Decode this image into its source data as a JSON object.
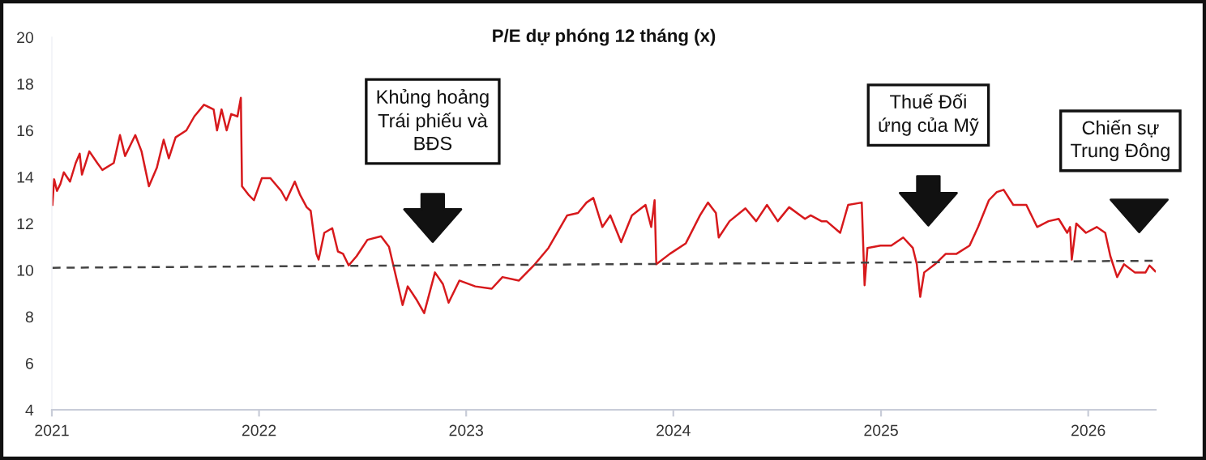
{
  "chart_data": {
    "type": "line",
    "title": "P/E dự phóng 12 tháng (x)",
    "xlim": [
      "2021-01-01",
      "2026-04-30"
    ],
    "xticks": [
      "2021",
      "2022",
      "2023",
      "2024",
      "2025",
      "2026"
    ],
    "ylim": [
      4,
      20
    ],
    "yticks": [
      4,
      6,
      8,
      10,
      12,
      14,
      16,
      18,
      20
    ],
    "grid": false,
    "series": [
      {
        "color": "#d7191c",
        "line_style": "solid",
        "x": [
          "2021-01-02",
          "2021-01-05",
          "2021-01-10",
          "2021-01-16",
          "2021-01-22",
          "2021-02-02",
          "2021-02-12",
          "2021-02-19",
          "2021-02-23",
          "2021-03-08",
          "2021-03-22",
          "2021-03-31",
          "2021-04-20",
          "2021-05-01",
          "2021-05-10",
          "2021-05-28",
          "2021-06-08",
          "2021-06-21",
          "2021-07-05",
          "2021-07-17",
          "2021-07-26",
          "2021-08-07",
          "2021-08-26",
          "2021-09-09",
          "2021-09-26",
          "2021-10-13",
          "2021-10-19",
          "2021-10-27",
          "2021-11-05",
          "2021-11-13",
          "2021-11-24",
          "2021-11-30",
          "2021-12-02",
          "2021-12-13",
          "2021-12-23",
          "2022-01-06",
          "2022-01-21",
          "2022-02-09",
          "2022-02-18",
          "2022-03-05",
          "2022-03-14",
          "2022-03-26",
          "2022-04-02",
          "2022-04-12",
          "2022-04-16",
          "2022-04-26",
          "2022-05-10",
          "2022-05-20",
          "2022-05-29",
          "2022-06-08",
          "2022-06-22",
          "2022-07-11",
          "2022-08-04",
          "2022-08-18",
          "2022-09-01",
          "2022-09-11",
          "2022-09-20",
          "2022-10-05",
          "2022-10-19",
          "2022-11-07",
          "2022-11-21",
          "2022-12-01",
          "2022-12-20",
          "2023-01-17",
          "2023-02-15",
          "2023-03-06",
          "2023-04-04",
          "2023-05-02",
          "2023-05-26",
          "2023-06-28",
          "2023-07-17",
          "2023-08-01",
          "2023-08-13",
          "2023-08-29",
          "2023-09-12",
          "2023-10-01",
          "2023-10-20",
          "2023-11-13",
          "2023-11-23",
          "2023-11-29",
          "2023-12-02",
          "2023-12-26",
          "2024-01-23",
          "2024-02-17",
          "2024-03-02",
          "2024-03-16",
          "2024-03-21",
          "2024-04-09",
          "2024-05-07",
          "2024-05-26",
          "2024-06-14",
          "2024-07-03",
          "2024-07-23",
          "2024-08-20",
          "2024-08-30",
          "2024-09-18",
          "2024-09-27",
          "2024-10-21",
          "2024-11-04",
          "2024-11-28",
          "2024-12-03",
          "2024-12-08",
          "2024-12-31",
          "2025-01-19",
          "2025-02-09",
          "2025-02-26",
          "2025-03-05",
          "2025-03-11",
          "2025-03-18",
          "2025-04-06",
          "2025-04-25",
          "2025-05-14",
          "2025-06-06",
          "2025-06-21",
          "2025-07-10",
          "2025-07-24",
          "2025-08-05",
          "2025-08-22",
          "2025-09-14",
          "2025-10-03",
          "2025-10-23",
          "2025-11-10",
          "2025-11-25",
          "2025-11-30",
          "2025-12-03",
          "2025-12-11",
          "2025-12-28",
          "2026-01-16",
          "2026-01-31",
          "2026-02-09",
          "2026-02-21",
          "2026-03-05",
          "2026-03-24",
          "2026-04-12",
          "2026-04-19",
          "2026-04-29"
        ],
        "values": [
          12.8,
          13.9,
          13.4,
          13.7,
          14.2,
          13.8,
          14.6,
          15.0,
          14.1,
          15.1,
          14.6,
          14.3,
          14.6,
          15.8,
          14.9,
          15.8,
          15.1,
          13.6,
          14.4,
          15.6,
          14.8,
          15.7,
          16.0,
          16.6,
          17.1,
          16.9,
          16.0,
          16.9,
          16.0,
          16.7,
          16.6,
          17.4,
          13.6,
          13.25,
          13.0,
          13.95,
          13.95,
          13.4,
          13.0,
          13.8,
          13.25,
          12.7,
          12.55,
          10.7,
          10.45,
          11.6,
          11.8,
          10.8,
          10.7,
          10.2,
          10.6,
          11.3,
          11.45,
          11.0,
          9.55,
          8.5,
          9.3,
          8.75,
          8.15,
          9.9,
          9.4,
          8.6,
          9.55,
          9.3,
          9.2,
          9.7,
          9.55,
          10.25,
          10.95,
          12.35,
          12.45,
          12.9,
          13.1,
          11.85,
          12.35,
          11.2,
          12.35,
          12.8,
          11.85,
          13.0,
          10.25,
          10.7,
          11.15,
          12.35,
          12.9,
          12.45,
          11.4,
          12.1,
          12.65,
          12.1,
          12.8,
          12.1,
          12.7,
          12.2,
          12.35,
          12.1,
          12.1,
          11.6,
          12.8,
          12.9,
          9.35,
          10.95,
          11.05,
          11.05,
          11.4,
          10.95,
          10.25,
          8.85,
          9.9,
          10.25,
          10.7,
          10.7,
          11.05,
          11.85,
          13.0,
          13.35,
          13.45,
          12.8,
          12.8,
          11.85,
          12.1,
          12.2,
          11.6,
          11.85,
          10.45,
          12.0,
          11.6,
          11.85,
          11.6,
          10.6,
          9.7,
          10.25,
          9.9,
          9.9,
          10.2,
          9.95
        ]
      },
      {
        "type": "line",
        "color": "#444444",
        "line_style": "dashed",
        "x": [
          "2021-01-02",
          "2026-04-29"
        ],
        "values": [
          10.1,
          10.4
        ]
      }
    ],
    "annotations": [
      "Khủng hoảng\nTrái phiếu và\nBĐS",
      "Thuế Đối\nứng của Mỹ",
      "Chiến sự\nTrung Đông"
    ]
  }
}
